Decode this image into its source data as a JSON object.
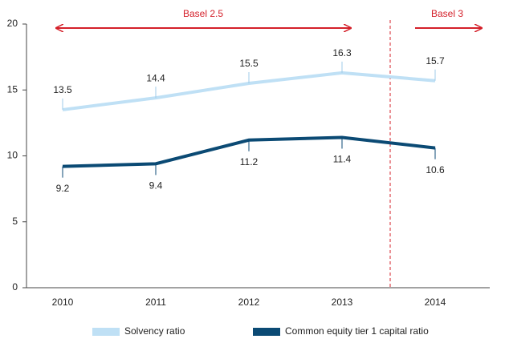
{
  "chart_data": {
    "type": "line",
    "categories": [
      "2010",
      "2011",
      "2012",
      "2013",
      "2014"
    ],
    "series": [
      {
        "name": "Solvency ratio",
        "color": "#bfe0f5",
        "values": [
          13.5,
          14.4,
          15.5,
          16.3,
          15.7
        ]
      },
      {
        "name": "Common equity tier 1 capital ratio",
        "color": "#0b4a74",
        "values": [
          9.2,
          9.4,
          11.2,
          11.4,
          10.6
        ]
      }
    ],
    "ylim": [
      0,
      20
    ],
    "yticks": [
      0,
      5,
      10,
      15,
      20
    ],
    "grid": false,
    "annotations": [
      "Basel 2.5",
      "Basel 3"
    ]
  }
}
